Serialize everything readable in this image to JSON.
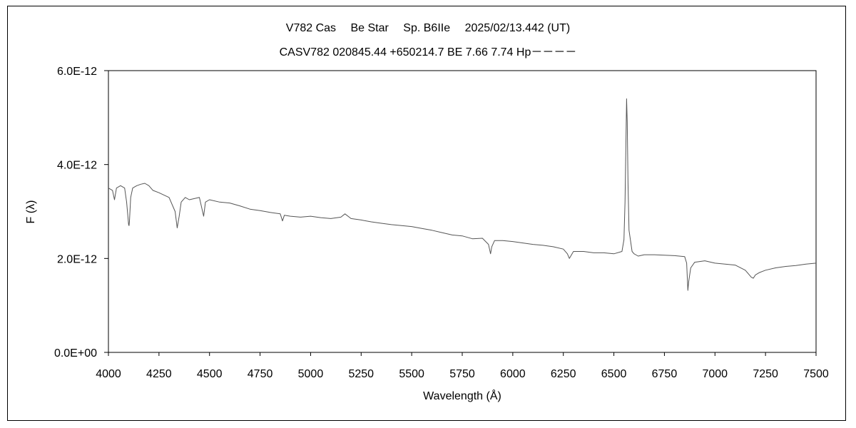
{
  "chart_data": {
    "type": "line",
    "title": "V782 Cas　 Be Star　 Sp. B6IIe　 2025/02/13.442 (UT)",
    "subtitle": "CASV782 020845.44 +650214.7 BE 7.66 7.74 Hp－－－－",
    "xlabel": "Wavelength (Å)",
    "ylabel": "F (λ)",
    "xlim": [
      4000,
      7500
    ],
    "ylim": [
      0,
      6e-12
    ],
    "xticks": [
      4000,
      4250,
      4500,
      4750,
      5000,
      5250,
      5500,
      5750,
      6000,
      6250,
      6500,
      6750,
      7000,
      7250,
      7500
    ],
    "xtick_labels": [
      "4000",
      "4250",
      "4500",
      "4750",
      "5000",
      "5250",
      "5500",
      "5750",
      "6000",
      "6250",
      "6500",
      "6750",
      "7000",
      "7250",
      "7500"
    ],
    "yticks": [
      0,
      2e-12,
      4e-12,
      6e-12
    ],
    "ytick_labels": [
      "0.0E+00",
      "2.0E-12",
      "4.0E-12",
      "6.0E-12"
    ],
    "grid": false,
    "legend": "none",
    "line_color": "#555555",
    "series": [
      {
        "x": [
          4000,
          4020,
          4030,
          4040,
          4060,
          4080,
          4090,
          4100,
          4102,
          4104,
          4110,
          4120,
          4140,
          4160,
          4180,
          4200,
          4220,
          4250,
          4300,
          4330,
          4340,
          4350,
          4360,
          4380,
          4400,
          4450,
          4471,
          4480,
          4500,
          4550,
          4600,
          4650,
          4700,
          4750,
          4800,
          4850,
          4861,
          4870,
          4900,
          4950,
          5000,
          5050,
          5100,
          5150,
          5170,
          5200,
          5250,
          5300,
          5350,
          5400,
          5450,
          5500,
          5550,
          5600,
          5650,
          5700,
          5750,
          5800,
          5850,
          5880,
          5890,
          5896,
          5910,
          5950,
          6000,
          6050,
          6100,
          6150,
          6200,
          6250,
          6270,
          6280,
          6300,
          6350,
          6400,
          6450,
          6500,
          6540,
          6550,
          6555,
          6560,
          6563,
          6566,
          6570,
          6575,
          6590,
          6600,
          6620,
          6650,
          6700,
          6750,
          6800,
          6850,
          6860,
          6866,
          6870,
          6880,
          6900,
          6950,
          7000,
          7050,
          7100,
          7150,
          7180,
          7190,
          7200,
          7220,
          7250,
          7300,
          7350,
          7400,
          7450,
          7500
        ],
        "y": [
          3.5e-12,
          3.45e-12,
          3.25e-12,
          3.5e-12,
          3.55e-12,
          3.5e-12,
          3.2e-12,
          2.72e-12,
          2.7e-12,
          2.8e-12,
          3.3e-12,
          3.5e-12,
          3.55e-12,
          3.58e-12,
          3.6e-12,
          3.55e-12,
          3.45e-12,
          3.4e-12,
          3.3e-12,
          3e-12,
          2.65e-12,
          2.9e-12,
          3.2e-12,
          3.3e-12,
          3.25e-12,
          3.3e-12,
          2.9e-12,
          3.2e-12,
          3.25e-12,
          3.2e-12,
          3.18e-12,
          3.12e-12,
          3.05e-12,
          3.02e-12,
          2.98e-12,
          2.95e-12,
          2.8e-12,
          2.92e-12,
          2.9e-12,
          2.88e-12,
          2.9e-12,
          2.87e-12,
          2.85e-12,
          2.88e-12,
          2.95e-12,
          2.85e-12,
          2.82e-12,
          2.78e-12,
          2.75e-12,
          2.72e-12,
          2.7e-12,
          2.68e-12,
          2.64e-12,
          2.6e-12,
          2.55e-12,
          2.5e-12,
          2.48e-12,
          2.42e-12,
          2.43e-12,
          2.3e-12,
          2.1e-12,
          2.25e-12,
          2.38e-12,
          2.38e-12,
          2.36e-12,
          2.33e-12,
          2.3e-12,
          2.28e-12,
          2.25e-12,
          2.2e-12,
          2.1e-12,
          2e-12,
          2.15e-12,
          2.15e-12,
          2.12e-12,
          2.12e-12,
          2.1e-12,
          2.15e-12,
          2.4e-12,
          3.2e-12,
          4.6e-12,
          5.4e-12,
          4.9e-12,
          3.6e-12,
          2.6e-12,
          2.15e-12,
          2.1e-12,
          2.05e-12,
          2.08e-12,
          2.08e-12,
          2.07e-12,
          2.06e-12,
          2.04e-12,
          1.9e-12,
          1.32e-12,
          1.5e-12,
          1.8e-12,
          1.92e-12,
          1.95e-12,
          1.9e-12,
          1.88e-12,
          1.86e-12,
          1.75e-12,
          1.6e-12,
          1.58e-12,
          1.65e-12,
          1.7e-12,
          1.75e-12,
          1.8e-12,
          1.83e-12,
          1.85e-12,
          1.88e-12,
          1.9e-12
        ]
      }
    ]
  }
}
